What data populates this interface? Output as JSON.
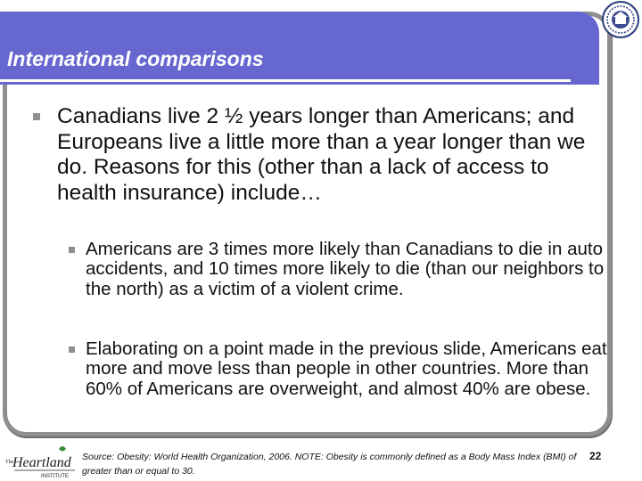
{
  "slide": {
    "title": "International comparisons",
    "bullets": [
      {
        "text": "Canadians live 2 ½ years longer than Americans; and Europeans live a little more than a year longer than we do.  Reasons for this (other than a lack of access to health insurance) include…",
        "sub_bullets": [
          "Americans are 3 times more likely than Canadians to die in auto accidents, and 10 times more likely to die (than our neighbors to the north) as a victim of a violent crime.",
          "Elaborating on a point made in the previous slide, Americans eat more and move less than people in other countries.  More than 60% of Americans are overweight, and almost 40% are obese."
        ]
      }
    ],
    "footnote": "Source: Obesity: World Health Organization, 2006. NOTE: Obesity is commonly defined as a Body Mass Index (BMI) of greater than or equal to 30.",
    "page_number": "22",
    "logo_text": "The Heartland INSTITUTE"
  },
  "colors": {
    "title_bar": "#6767d0",
    "frame_border": "#8f8f8f",
    "bullet": "#8f8f8f",
    "text": "#111111"
  }
}
